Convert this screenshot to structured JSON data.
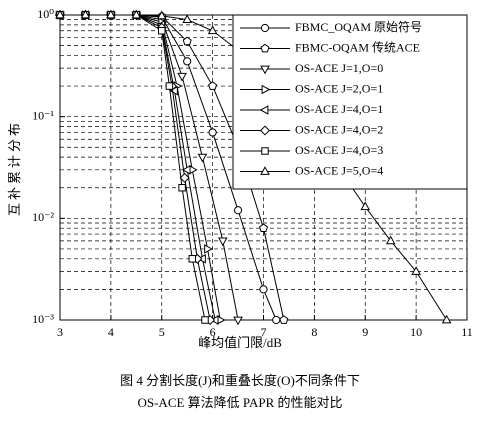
{
  "chart_data": {
    "type": "line",
    "log_y": true,
    "grid": true,
    "minor_grid": true,
    "legend_position": "upper right",
    "xlabel": "峰均值门限/dB",
    "ylabel": "互补累计分布",
    "caption": [
      "图 4   分割长度(J)和重叠长度(O)不同条件下",
      "OS-ACE 算法降低 PAPR 的性能对比"
    ],
    "xlim": [
      3,
      11
    ],
    "xticks": [
      3,
      4,
      5,
      6,
      7,
      8,
      9,
      10,
      11
    ],
    "ylim": [
      0.001,
      1
    ],
    "yticks": [
      {
        "value": 0.001,
        "label": "10⁻³"
      },
      {
        "value": 0.01,
        "label": "10⁻²"
      },
      {
        "value": 0.1,
        "label": "10⁻¹"
      },
      {
        "value": 1,
        "label": "10⁰"
      }
    ],
    "series": [
      {
        "name": "FBMC_OQAM 原始符号",
        "marker": "circle",
        "color": "#000000",
        "x": [
          3,
          3.5,
          4,
          4.5,
          5,
          5.5,
          6,
          6.5,
          7,
          7.25
        ],
        "values": [
          1,
          1,
          1,
          1,
          0.95,
          0.35,
          0.07,
          0.012,
          0.002,
          0.001
        ]
      },
      {
        "name": "FBMC-OQAM 传统ACE",
        "marker": "pentagon",
        "color": "#000000",
        "x": [
          3,
          3.5,
          4,
          4.5,
          5,
          5.5,
          6,
          6.5,
          7,
          7.4
        ],
        "values": [
          1,
          1,
          1,
          1,
          0.97,
          0.55,
          0.2,
          0.05,
          0.008,
          0.001
        ]
      },
      {
        "name": "OS-ACE J=1,O=0",
        "marker": "tri-down",
        "color": "#000000",
        "x": [
          3,
          3.5,
          4,
          4.5,
          5,
          5.4,
          5.8,
          6.2,
          6.5
        ],
        "values": [
          1,
          1,
          1,
          1,
          0.9,
          0.25,
          0.04,
          0.006,
          0.001
        ]
      },
      {
        "name": "OS-ACE J=2,O=1",
        "marker": "tri-right",
        "color": "#000000",
        "x": [
          3,
          3.5,
          4,
          4.5,
          5,
          5.3,
          5.6,
          5.9,
          6.15
        ],
        "values": [
          1,
          1,
          1,
          1,
          0.85,
          0.2,
          0.03,
          0.005,
          0.001
        ]
      },
      {
        "name": "OS-ACE J=4,O=1",
        "marker": "tri-left",
        "color": "#000000",
        "x": [
          3,
          3.5,
          4,
          4.5,
          5,
          5.25,
          5.5,
          5.8,
          6.05
        ],
        "values": [
          1,
          1,
          1,
          1,
          0.8,
          0.18,
          0.03,
          0.004,
          0.001
        ]
      },
      {
        "name": "OS-ACE J=4,O=2",
        "marker": "diamond",
        "color": "#000000",
        "x": [
          3,
          3.5,
          4,
          4.5,
          5,
          5.2,
          5.45,
          5.7,
          5.95
        ],
        "values": [
          1,
          1,
          1,
          1,
          0.75,
          0.2,
          0.025,
          0.004,
          0.001
        ]
      },
      {
        "name": "OS-ACE J=4,O=3",
        "marker": "square",
        "color": "#000000",
        "x": [
          3,
          3.5,
          4,
          4.5,
          5,
          5.15,
          5.4,
          5.6,
          5.85
        ],
        "values": [
          1,
          1,
          1,
          1,
          0.7,
          0.2,
          0.02,
          0.004,
          0.001
        ]
      },
      {
        "name": "OS-ACE J=5,O=4",
        "marker": "tri-up",
        "color": "#000000",
        "x": [
          3,
          3.5,
          4,
          4.5,
          5,
          5.5,
          6,
          6.5,
          7,
          7.5,
          8,
          8.5,
          9,
          9.5,
          10,
          10.6
        ],
        "values": [
          1,
          1,
          1,
          1,
          0.98,
          0.9,
          0.7,
          0.45,
          0.25,
          0.12,
          0.06,
          0.03,
          0.013,
          0.006,
          0.003,
          0.001
        ]
      }
    ]
  }
}
